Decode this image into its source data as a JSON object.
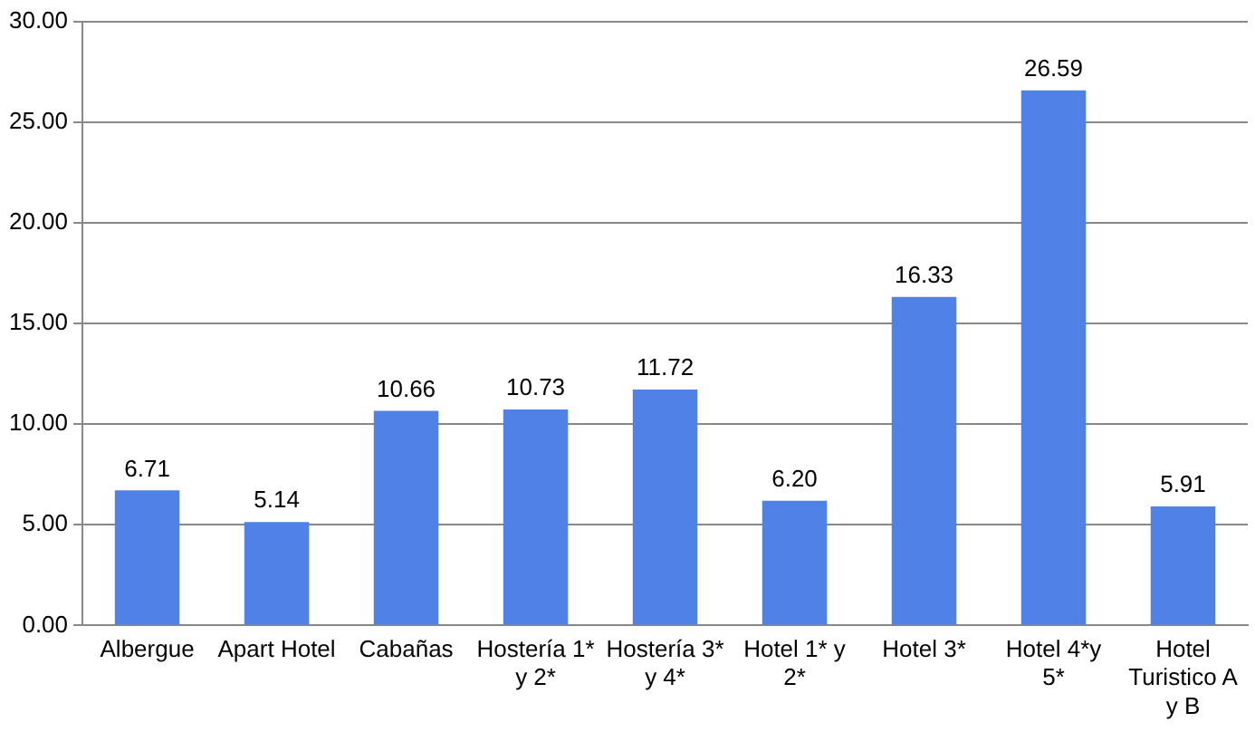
{
  "chart_data": {
    "type": "bar",
    "categories": [
      "Albergue",
      "Apart Hotel",
      "Cabañas",
      "Hostería 1* y 2*",
      "Hostería 3* y 4*",
      "Hotel 1* y 2*",
      "Hotel 3*",
      "Hotel 4*y 5*",
      "Hotel Turistico A y B"
    ],
    "values": [
      6.71,
      5.14,
      10.66,
      10.73,
      11.72,
      6.2,
      16.33,
      26.59,
      5.91
    ],
    "value_labels": [
      "6.71",
      "5.14",
      "10.66",
      "10.73",
      "11.72",
      "6.20",
      "16.33",
      "26.59",
      "5.91"
    ],
    "color": "#4f81e6",
    "ylim": [
      0,
      30
    ],
    "yticks": [
      {
        "value": 0,
        "label": "0.00"
      },
      {
        "value": 5,
        "label": "5.00"
      },
      {
        "value": 10,
        "label": "10.00"
      },
      {
        "value": 15,
        "label": "15.00"
      },
      {
        "value": 20,
        "label": "20.00"
      },
      {
        "value": 25,
        "label": "25.00"
      },
      {
        "value": 30,
        "label": "30.00"
      }
    ],
    "grid": "y"
  }
}
